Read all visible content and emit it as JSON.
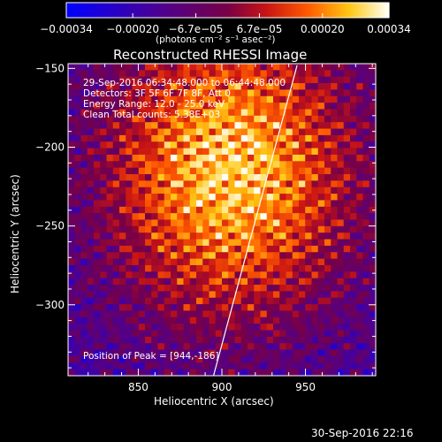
{
  "chart_data": {
    "type": "heatmap",
    "title": "Reconstructed RHESSI Image",
    "xlabel": "Heliocentric X (arcsec)",
    "ylabel": "Heliocentric Y (arcsec)",
    "xlim": [
      808,
      992
    ],
    "ylim": [
      -345,
      -147
    ],
    "x_ticks": [
      850,
      900,
      950
    ],
    "y_ticks": [
      -150,
      -200,
      -250,
      -300
    ],
    "colorbar": {
      "label": "(photons cm⁻² s⁻¹ asec⁻²)",
      "range": [
        -0.00034,
        0.00034
      ],
      "tick_values": [
        -0.00034,
        -0.0002,
        -6.7e-05,
        6.7e-05,
        0.0002,
        0.00034
      ],
      "tick_labels": [
        "−0.00034",
        "−0.00020",
        "−6.7e−05",
        "6.7e−05",
        "0.00020",
        "0.00034"
      ],
      "colormap": "blue-purple-red-yellow-white"
    },
    "peak": {
      "x": 944,
      "y": -186
    },
    "limb_line": [
      [
        895,
        -345
      ],
      [
        945,
        -148
      ]
    ],
    "annotations": {
      "time": "29-Sep-2016 06:34:48.000 to 06:44:48.000",
      "detectors": "Detectors: 3F 5F 6F 7F 8F, Att 0",
      "energy": "Energy Range: 12.0 - 25.0 keV",
      "clean": "Clean      Total counts: 5.38E+03",
      "peak_text": "Position of Peak = [944,-186]"
    },
    "footer_timestamp": "30-Sep-2016 22:16"
  }
}
